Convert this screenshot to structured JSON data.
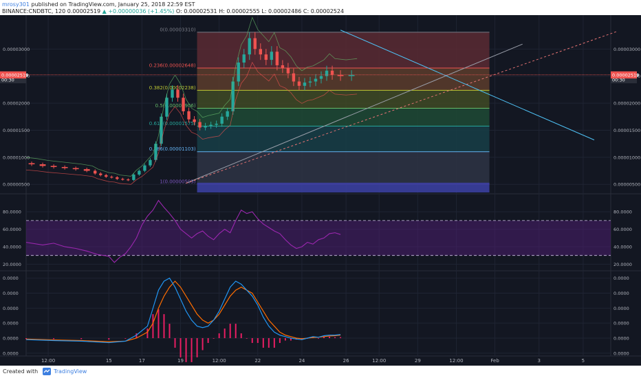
{
  "header": {
    "author": "mrosy301",
    "published": "published on TradingView.com, January 25, 2018 22:59 EST",
    "symbol": "BINANCE:CNDBTC, 120",
    "last": "0.00002519",
    "change": "▲ +0.00000036 (+1.45%)",
    "ohlc": "O: 0.00002531 H: 0.00002555 L: 0.00002486 C: 0.00002524"
  },
  "footer": {
    "created": "Created with",
    "brand": "TradingView"
  },
  "colors": {
    "bg": "#131722",
    "grid": "#1f2433",
    "up": "#26a69a",
    "down": "#ef5350",
    "rsi": "#9c27b0",
    "macd": "#2196f3",
    "signal": "#ff6d00",
    "hist": "#e91e63",
    "price_tag": "#ef5350"
  },
  "chart_data": [
    {
      "type": "line",
      "panel": "price",
      "y_axis_labels": [
        "0.00003000",
        "0.00002500",
        "0.00002000",
        "0.00001500",
        "0.00001000",
        "0.00000500"
      ],
      "y_axis_values": [
        3e-05,
        2.5e-05,
        2e-05,
        1.5e-05,
        1e-05,
        5e-06
      ],
      "ylim": [
        3.5e-06,
        3.55e-05
      ],
      "price_tags": [
        {
          "label": "0.00002524",
          "value": 2.524e-05
        },
        {
          "label": "00:30",
          "value": 2.43e-05
        },
        {
          "label": "0.00002519",
          "value": 2.519e-05
        }
      ],
      "fibonacci": [
        {
          "label": "0(0.00003310)",
          "value": 3.31e-05,
          "color": "#787b86",
          "fill": "#5a2a32"
        },
        {
          "label": "0.236(0.00002648)",
          "value": 2.648e-05,
          "color": "#ef5350",
          "fill": "#5c3c2c"
        },
        {
          "label": "0.382(0.00002238)",
          "value": 2.238e-05,
          "color": "#c0ca33",
          "fill": "#3f4a25"
        },
        {
          "label": "0.5(0.00001906)",
          "value": 1.906e-05,
          "color": "#66bb6a",
          "fill": "#1f4a35"
        },
        {
          "label": "0.618(0.00001575)",
          "value": 1.575e-05,
          "color": "#26a69a",
          "fill": "#183e47"
        },
        {
          "label": "0.786(0.00001103)",
          "value": 1.103e-05,
          "color": "#64b5f6",
          "fill": "#2e3444"
        },
        {
          "label": "1(0.00000503)",
          "value": 5.03e-06,
          "color": "#7e57c2",
          "fill": "#2a2660"
        }
      ],
      "series": [
        {
          "name": "price",
          "x": [
            0,
            2,
            4,
            6,
            8,
            10,
            12,
            13,
            14,
            15,
            16,
            17,
            18,
            19,
            20,
            21,
            22,
            23,
            24,
            25,
            26,
            27,
            28,
            29,
            30,
            31,
            32,
            33,
            34,
            35,
            36,
            37,
            38,
            39,
            40,
            41,
            42,
            43,
            44,
            45,
            46,
            47,
            48,
            49,
            50,
            51,
            52,
            53,
            54,
            55,
            56,
            58,
            60
          ],
          "values": [
            8.9e-06,
            8.7e-06,
            8.4e-06,
            8.2e-06,
            8e-06,
            7.8e-06,
            7.5e-06,
            7e-06,
            6.7e-06,
            6.4e-06,
            6.3e-06,
            6e-06,
            5.9e-06,
            5.8e-06,
            6.8e-06,
            7.5e-06,
            8.5e-06,
            9.5e-06,
            1.25e-05,
            1.75e-05,
            2.1e-05,
            2.25e-05,
            2.1e-05,
            1.85e-05,
            1.7e-05,
            1.65e-05,
            1.55e-05,
            1.58e-05,
            1.6e-05,
            1.62e-05,
            1.75e-05,
            1.85e-05,
            2.4e-05,
            2.75e-05,
            2.9e-05,
            3.2e-05,
            3e-05,
            2.9e-05,
            2.8e-05,
            2.95e-05,
            2.7e-05,
            2.65e-05,
            2.55e-05,
            2.4e-05,
            2.32e-05,
            2.38e-05,
            2.4e-05,
            2.45e-05,
            2.5e-05,
            2.6e-05,
            2.52e-05,
            2.5e-05,
            2.52e-05
          ]
        }
      ]
    },
    {
      "type": "line",
      "panel": "rsi",
      "y_axis_labels": [
        "80.0000",
        "60.0000",
        "40.0000",
        "20.0000"
      ],
      "y_axis_values": [
        80,
        60,
        40,
        20
      ],
      "ylim": [
        14,
        99
      ],
      "bands": [
        70,
        30
      ],
      "series": [
        {
          "name": "rsi",
          "x": [
            0,
            3,
            5,
            7,
            9,
            11,
            13,
            15,
            16,
            17,
            18,
            19,
            20,
            21,
            22,
            23,
            24,
            25,
            26,
            27,
            28,
            29,
            30,
            31,
            32,
            33,
            34,
            35,
            36,
            37,
            38,
            39,
            40,
            41,
            42,
            43,
            44,
            45,
            46,
            47,
            48,
            49,
            50,
            51,
            52,
            53,
            54,
            55,
            56,
            57
          ],
          "values": [
            45,
            42,
            44,
            40,
            38,
            35,
            31,
            29,
            22,
            28,
            32,
            40,
            50,
            65,
            75,
            82,
            93,
            85,
            78,
            70,
            60,
            55,
            50,
            55,
            58,
            52,
            48,
            55,
            60,
            56,
            70,
            82,
            78,
            80,
            72,
            66,
            62,
            58,
            55,
            48,
            42,
            38,
            40,
            45,
            43,
            48,
            50,
            55,
            56,
            54
          ]
        }
      ]
    },
    {
      "type": "bar",
      "panel": "macd",
      "y_axis_labels": [
        "0.0000",
        "0.0000",
        "0.0000",
        "0.0000",
        "0.0000",
        "0.0000"
      ],
      "y_axis_values": [
        2e-06,
        1.5e-06,
        1e-06,
        5e-07,
        0.0,
        -5e-07
      ],
      "ylim": [
        -5.5e-07,
        2.2e-06
      ],
      "series": [
        {
          "name": "macd",
          "x": [
            0,
            5,
            10,
            15,
            18,
            20,
            22,
            23,
            24,
            25,
            26,
            27,
            28,
            29,
            30,
            31,
            32,
            33,
            34,
            35,
            36,
            37,
            38,
            39,
            40,
            41,
            42,
            43,
            44,
            45,
            46,
            47,
            48,
            49,
            50,
            51,
            52,
            53,
            54,
            55,
            56,
            57
          ],
          "values": [
            -5e-08,
            -8e-08,
            -1e-07,
            -1.5e-07,
            -1e-07,
            1e-07,
            4e-07,
            1e-06,
            1.6e-06,
            1.9e-06,
            2e-06,
            1.7e-06,
            1.3e-06,
            9e-07,
            6e-07,
            4e-07,
            3.5e-07,
            4e-07,
            6e-07,
            9e-07,
            1.3e-06,
            1.7e-06,
            1.9e-06,
            1.8e-06,
            1.6e-06,
            1.4e-06,
            1.1e-06,
            7e-07,
            4e-07,
            2e-07,
            1e-07,
            5e-08,
            0.0,
            -3e-08,
            -5e-08,
            0.0,
            5e-08,
            3e-08,
            8e-08,
            1e-07,
            1e-07,
            1.2e-07
          ]
        },
        {
          "name": "signal",
          "x": [
            0,
            5,
            10,
            15,
            18,
            20,
            22,
            23,
            24,
            25,
            26,
            27,
            28,
            29,
            30,
            31,
            32,
            33,
            34,
            35,
            36,
            37,
            38,
            39,
            40,
            41,
            42,
            43,
            44,
            45,
            46,
            47,
            48,
            49,
            50,
            51,
            52,
            53,
            54,
            55,
            56,
            57
          ],
          "values": [
            -3e-08,
            -6e-08,
            -8e-08,
            -1.2e-07,
            -1e-07,
            0.0,
            2e-07,
            5e-07,
            1e-06,
            1.4e-06,
            1.7e-06,
            1.9e-06,
            1.7e-06,
            1.4e-06,
            1.1e-06,
            8e-07,
            6e-07,
            5e-07,
            6e-07,
            8e-07,
            1.1e-06,
            1.4e-06,
            1.6e-06,
            1.7e-06,
            1.6e-06,
            1.5e-06,
            1.2e-06,
            9e-07,
            6e-07,
            4e-07,
            2e-07,
            1e-07,
            5e-08,
            0.0,
            -2e-08,
            0.0,
            2e-08,
            3e-08,
            5e-08,
            7e-08,
            8e-08,
            1e-07
          ]
        }
      ]
    }
  ],
  "x_axis": {
    "labels": [
      "12:00",
      "15",
      "17",
      "19",
      "12:00",
      "22",
      "24",
      "26",
      "12:00",
      "29",
      "12:00",
      "Feb",
      "3",
      "5"
    ],
    "positions": [
      4,
      15,
      21,
      28,
      35,
      42,
      50,
      58,
      64,
      71,
      78,
      85,
      93,
      101
    ],
    "xmax": 106
  }
}
